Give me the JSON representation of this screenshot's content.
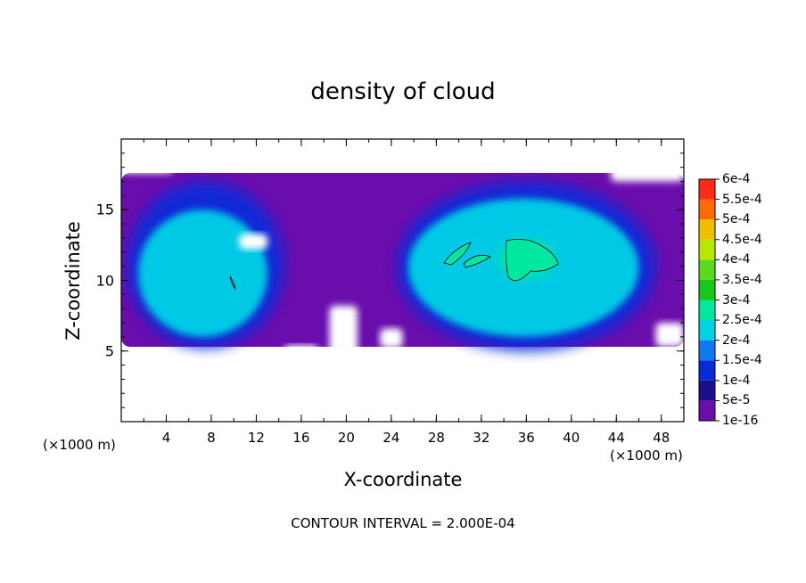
{
  "chart_data": {
    "type": "heatmap",
    "title": "density of cloud",
    "xlabel": "X-coordinate",
    "ylabel": "Z-coordinate",
    "x_unit_left": "(×1000 m)",
    "x_unit_right": "(×1000 m)",
    "footer": "CONTOUR INTERVAL = 2.000E-04",
    "xlim": [
      0,
      50
    ],
    "ylim": [
      0,
      20
    ],
    "x_ticks": [
      "4",
      "8",
      "12",
      "16",
      "20",
      "24",
      "28",
      "32",
      "36",
      "40",
      "44",
      "48"
    ],
    "y_ticks": [
      "5",
      "10",
      "15"
    ],
    "colorbar": {
      "labels": [
        "1e-16",
        "5e-5",
        "1e-4",
        "1.5e-4",
        "2e-4",
        "2.5e-4",
        "3e-4",
        "3.5e-4",
        "4e-4",
        "4.5e-4",
        "5e-4",
        "5.5e-4",
        "6e-4"
      ],
      "colors": [
        "#6a0dad",
        "#1a0f8c",
        "#0a2ad8",
        "#0f78f0",
        "#00d2e6",
        "#00e8a0",
        "#18c818",
        "#58d820",
        "#b8e800",
        "#f0c000",
        "#ff6a00",
        "#ff2a1a",
        "#ff8a8a"
      ]
    },
    "cloud_regions": [
      {
        "x": [
          0,
          50
        ],
        "z": [
          5.3,
          17.6
        ],
        "level": "1e-16"
      },
      {
        "x": [
          0.5,
          14.5
        ],
        "z": [
          5.2,
          17.0
        ],
        "level": "1e-4"
      },
      {
        "x": [
          1.5,
          13.0
        ],
        "z": [
          6.0,
          15.0
        ],
        "level": "2e-4"
      },
      {
        "x": [
          24.5,
          47.5
        ],
        "z": [
          5.0,
          17.0
        ],
        "level": "1e-4"
      },
      {
        "x": [
          25.5,
          46.0
        ],
        "z": [
          6.0,
          15.8
        ],
        "level": "2e-4"
      },
      {
        "x": [
          33.5,
          38.5
        ],
        "z": [
          10.2,
          12.8
        ],
        "level": "2.5e-4"
      }
    ]
  }
}
